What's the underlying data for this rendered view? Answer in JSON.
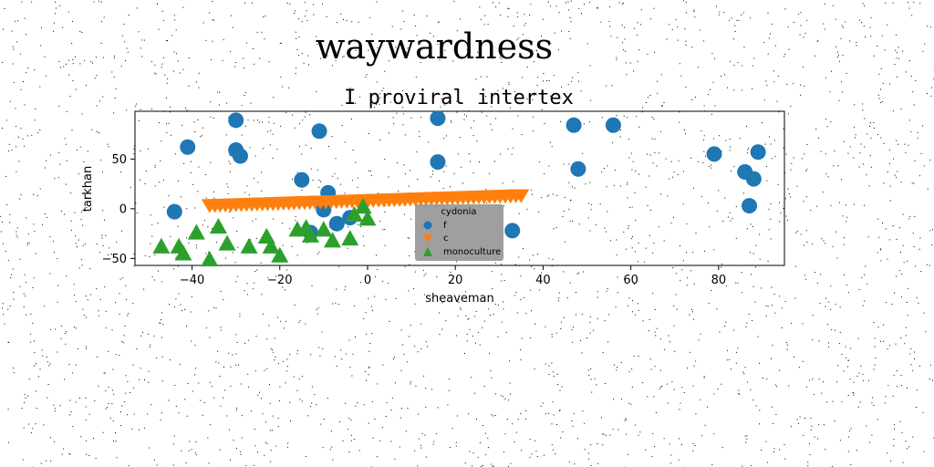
{
  "page_title": "waywardness",
  "chart_data": {
    "type": "scatter",
    "title": "I proviral intertex",
    "xlabel": "sheaveman",
    "ylabel": "tarkhan",
    "xlim": [
      -53,
      95
    ],
    "ylim": [
      -57,
      98
    ],
    "xticks": [
      -40,
      -20,
      0,
      20,
      40,
      60,
      80
    ],
    "yticks": [
      -50,
      0,
      50
    ],
    "grid": false,
    "legend": {
      "title": "cydonia",
      "placement": "lower-center"
    },
    "series": [
      {
        "name": "f",
        "marker": "circle",
        "color": "#1f77b4",
        "points": [
          {
            "x": -44,
            "y": -3
          },
          {
            "x": -41,
            "y": 62
          },
          {
            "x": -30,
            "y": 89
          },
          {
            "x": -30,
            "y": 59
          },
          {
            "x": -29,
            "y": 53
          },
          {
            "x": -15,
            "y": 29
          },
          {
            "x": -13,
            "y": -24
          },
          {
            "x": -11,
            "y": 78
          },
          {
            "x": -10,
            "y": -1
          },
          {
            "x": -9,
            "y": 16
          },
          {
            "x": -7,
            "y": -15
          },
          {
            "x": -4,
            "y": -9
          },
          {
            "x": 16,
            "y": 91
          },
          {
            "x": 16,
            "y": 47
          },
          {
            "x": 33,
            "y": -22
          },
          {
            "x": 47,
            "y": 84
          },
          {
            "x": 48,
            "y": 40
          },
          {
            "x": 56,
            "y": 84
          },
          {
            "x": 79,
            "y": 55
          },
          {
            "x": 86,
            "y": 37
          },
          {
            "x": 87,
            "y": 3
          },
          {
            "x": 88,
            "y": 30
          },
          {
            "x": 89,
            "y": 57
          }
        ]
      },
      {
        "name": "c",
        "marker": "triangle-down",
        "color": "#ff7f0e",
        "line_from": {
          "x": -36,
          "y": 3
        },
        "line_to": {
          "x": 35,
          "y": 13
        },
        "count": 60
      },
      {
        "name": "monoculture",
        "marker": "triangle-up",
        "color": "#2ca02c",
        "points": [
          {
            "x": -47,
            "y": -38
          },
          {
            "x": -43,
            "y": -38
          },
          {
            "x": -42,
            "y": -45
          },
          {
            "x": -39,
            "y": -24
          },
          {
            "x": -36,
            "y": -51
          },
          {
            "x": -34,
            "y": -18
          },
          {
            "x": -32,
            "y": -35
          },
          {
            "x": -27,
            "y": -38
          },
          {
            "x": -23,
            "y": -28
          },
          {
            "x": -22,
            "y": -38
          },
          {
            "x": -20,
            "y": -47
          },
          {
            "x": -16,
            "y": -21
          },
          {
            "x": -14,
            "y": -19
          },
          {
            "x": -13,
            "y": -27
          },
          {
            "x": -10,
            "y": -21
          },
          {
            "x": -8,
            "y": -32
          },
          {
            "x": -4,
            "y": -30
          },
          {
            "x": -3,
            "y": -6
          },
          {
            "x": -1,
            "y": 2
          },
          {
            "x": 0,
            "y": -10
          }
        ]
      }
    ]
  }
}
